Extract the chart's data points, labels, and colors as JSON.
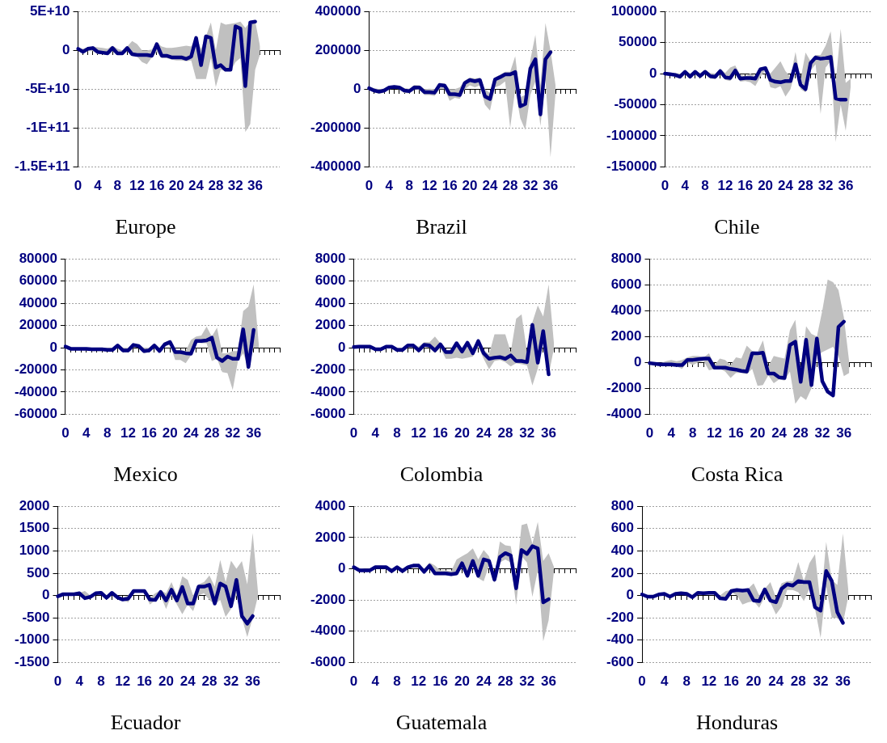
{
  "chart_data": [
    {
      "type": "line",
      "title": "Europe",
      "categories": [
        "0",
        null,
        null,
        null,
        "4",
        null,
        null,
        null,
        "8",
        null,
        null,
        null,
        "12",
        null,
        null,
        null,
        "16",
        null,
        null,
        null,
        "20",
        null,
        null,
        null,
        "24",
        null,
        null,
        null,
        "28",
        null,
        null,
        null,
        "32",
        null,
        null,
        null,
        "36",
        null,
        null,
        null,
        null,
        null
      ],
      "ylim": [
        -150000000000.0,
        50000000000.0
      ],
      "yticks": [
        {
          "value": -150000000000.0,
          "label": "-1.5E+11"
        },
        {
          "value": -100000000000.0,
          "label": "-1E+11"
        },
        {
          "value": -50000000000.0,
          "label": "-5E+10"
        },
        0,
        {
          "value": 50000000000.0,
          "label": "5E+10"
        }
      ],
      "grid": "y",
      "legend": false,
      "series": [
        {
          "color": "#000080",
          "values": [
            2000000000.0,
            -2000000000.0,
            2000000000.0,
            3000000000.0,
            -2000000000.0,
            -3000000000.0,
            -4000000000.0,
            3000000000.0,
            -4000000000.0,
            -4000000000.0,
            3000000000.0,
            -5000000000.0,
            -6000000000.0,
            -6000000000.0,
            -6000000000.0,
            -7000000000.0,
            8000000000.0,
            -7000000000.0,
            -7000000000.0,
            -9000000000.0,
            -9000000000.0,
            -9000000000.0,
            -11000000000.0,
            -8000000000.0,
            16000000000.0,
            -19000000000.0,
            18000000000.0,
            16000000000.0,
            -22000000000.0,
            -19000000000.0,
            -25000000000.0,
            -25000000000.0,
            31000000000.0,
            28000000000.0,
            -46000000000.0,
            36000000000.0,
            37000000000.0,
            null,
            null,
            null,
            null,
            null
          ],
          "lower": [
            -1000000000.0,
            -4000000000.0,
            -1000000000.0,
            -1000000000.0,
            -5000000000.0,
            -5000000000.0,
            -6000000000.0,
            -1000000000.0,
            -6000000000.0,
            -6000000000.0,
            -1000000000.0,
            -7000000000.0,
            -8000000000.0,
            -15000000000.0,
            -18000000000.0,
            -9000000000.0,
            -2000000000.0,
            -10000000000.0,
            -10000000000.0,
            -12000000000.0,
            -13000000000.0,
            -13000000000.0,
            -14000000000.0,
            -13000000000.0,
            -37000000000.0,
            -37000000000.0,
            -37000000000.0,
            -10000000000.0,
            -47000000000.0,
            -25000000000.0,
            -27000000000.0,
            -27000000000.0,
            -15000000000.0,
            -10000000000.0,
            -105000000000.0,
            -95000000000.0,
            -25000000000.0,
            -5000000000.0,
            null,
            null,
            null,
            null
          ],
          "upper": [
            3000000000.0,
            2000000000.0,
            4000000000.0,
            5000000000.0,
            4000000000.0,
            3000000000.0,
            2000000000.0,
            6000000000.0,
            2000000000.0,
            0,
            5000000000.0,
            12000000000.0,
            8000000000.0,
            0,
            0,
            1000000000.0,
            10000000000.0,
            5000000000.0,
            3000000000.0,
            3000000000.0,
            4000000000.0,
            5000000000.0,
            6000000000.0,
            5000000000.0,
            18000000000.0,
            2000000000.0,
            18000000000.0,
            36000000000.0,
            0,
            36000000000.0,
            33000000000.0,
            34000000000.0,
            35000000000.0,
            37000000000.0,
            29000000000.0,
            37000000000.0,
            38000000000.0,
            5000000000.0,
            null,
            null,
            null,
            null
          ]
        }
      ]
    },
    {
      "type": "line",
      "title": "Brazil",
      "categories": [
        "0",
        null,
        null,
        null,
        "4",
        null,
        null,
        null,
        "8",
        null,
        null,
        null,
        "12",
        null,
        null,
        null,
        "16",
        null,
        null,
        null,
        "20",
        null,
        null,
        null,
        "24",
        null,
        null,
        null,
        "28",
        null,
        null,
        null,
        "32",
        null,
        null,
        null,
        "36",
        null,
        null,
        null,
        null,
        null
      ],
      "ylim": [
        -400000,
        400000
      ],
      "yticks": [
        -400000,
        -200000,
        0,
        200000,
        400000
      ],
      "grid": "y",
      "legend": false,
      "series": [
        {
          "color": "#000080",
          "values": [
            5000,
            -7000,
            -13000,
            -7000,
            9000,
            12000,
            9000,
            -7000,
            -10000,
            9000,
            9000,
            -15000,
            -15000,
            -18000,
            22000,
            18000,
            -26000,
            -26000,
            -30000,
            32000,
            47000,
            41000,
            47000,
            -37000,
            -51000,
            50000,
            62000,
            76000,
            76000,
            88000,
            -88000,
            -76000,
            106000,
            154000,
            -130000,
            154000,
            190000,
            null,
            null,
            null,
            null,
            null
          ],
          "lower": [
            -5000,
            -15000,
            -25000,
            -18000,
            0,
            2000,
            0,
            -20000,
            -22000,
            0,
            -5000,
            -30000,
            -30000,
            -35000,
            0,
            0,
            -60000,
            -45000,
            -50000,
            0,
            20000,
            10000,
            20000,
            -80000,
            -110000,
            10000,
            20000,
            40000,
            -200000,
            0,
            -150000,
            -210000,
            -30000,
            40000,
            -190000,
            50000,
            -350000,
            -20000,
            null,
            null,
            null,
            null
          ],
          "upper": [
            12000,
            5000,
            0,
            3000,
            15000,
            20000,
            18000,
            5000,
            2000,
            22000,
            20000,
            0,
            2000,
            0,
            30000,
            30000,
            0,
            0,
            10000,
            45000,
            60000,
            55000,
            60000,
            0,
            -20000,
            60000,
            75000,
            90000,
            90000,
            170000,
            -40000,
            -30000,
            150000,
            280000,
            20000,
            340000,
            200000,
            20000,
            null,
            null,
            null,
            null
          ]
        }
      ]
    },
    {
      "type": "line",
      "title": "Chile",
      "categories": [
        "0",
        null,
        null,
        null,
        "4",
        null,
        null,
        null,
        "8",
        null,
        null,
        null,
        "12",
        null,
        null,
        null,
        "16",
        null,
        null,
        null,
        "20",
        null,
        null,
        null,
        "24",
        null,
        null,
        null,
        "28",
        null,
        null,
        null,
        "32",
        null,
        null,
        null,
        "36",
        null,
        null,
        null,
        null,
        null
      ],
      "ylim": [
        -150000,
        100000
      ],
      "yticks": [
        -150000,
        -100000,
        -50000,
        0,
        50000,
        100000
      ],
      "grid": "y",
      "legend": false,
      "series": [
        {
          "color": "#000080",
          "values": [
            0,
            -1000,
            -2000,
            -5000,
            3000,
            -5000,
            3000,
            -4000,
            3000,
            -4000,
            -5000,
            4000,
            -6000,
            -7000,
            5000,
            -8000,
            -7000,
            -7000,
            -8000,
            7000,
            9000,
            -10000,
            -13000,
            -14000,
            -12000,
            -12000,
            15000,
            -18000,
            -25000,
            17000,
            26000,
            24000,
            25000,
            27000,
            -40000,
            -42000,
            -42000,
            null,
            null,
            null,
            null,
            null
          ],
          "lower": [
            -2000,
            -3000,
            -5000,
            -8000,
            0,
            -8000,
            0,
            -7000,
            0,
            -8000,
            -9000,
            0,
            -10000,
            -12000,
            0,
            -13000,
            -12000,
            -14000,
            -20000,
            -5000,
            5000,
            -22000,
            -24000,
            -20000,
            -37000,
            -25000,
            5000,
            -25000,
            -30000,
            5000,
            15000,
            -65000,
            10000,
            20000,
            -110000,
            -50000,
            -92000,
            -20000,
            null,
            null,
            null,
            null
          ],
          "upper": [
            2000,
            1000,
            1000,
            0,
            5000,
            0,
            5000,
            1000,
            6000,
            1000,
            0,
            8000,
            1000,
            10000,
            13000,
            -2000,
            -4000,
            0,
            -4000,
            8000,
            11000,
            0,
            10000,
            20000,
            4000,
            -5000,
            35000,
            -10000,
            34000,
            20000,
            30000,
            30000,
            45000,
            68000,
            -15000,
            72000,
            -15000,
            -8000,
            null,
            null,
            null,
            null
          ]
        }
      ]
    },
    {
      "type": "line",
      "title": "Mexico",
      "categories": [
        "0",
        null,
        null,
        null,
        "4",
        null,
        null,
        null,
        "8",
        null,
        null,
        null,
        "12",
        null,
        null,
        null,
        "16",
        null,
        null,
        null,
        "20",
        null,
        null,
        null,
        "24",
        null,
        null,
        null,
        "28",
        null,
        null,
        null,
        "32",
        null,
        null,
        null,
        "36",
        null,
        null,
        null,
        null,
        null
      ],
      "ylim": [
        -60000,
        80000
      ],
      "yticks": [
        -60000,
        -40000,
        -20000,
        0,
        20000,
        40000,
        60000,
        80000
      ],
      "grid": "y",
      "legend": false,
      "series": [
        {
          "color": "#000080",
          "values": [
            1000,
            -1000,
            -1000,
            -1000,
            -1000,
            -1500,
            -1500,
            -1500,
            -2000,
            -2000,
            2000,
            -2500,
            -2500,
            2500,
            1500,
            -3000,
            -2500,
            2000,
            -3000,
            3000,
            5000,
            -4000,
            -4000,
            -5000,
            -5500,
            6000,
            6000,
            6500,
            9000,
            -9000,
            -12000,
            -8000,
            -10000,
            -10000,
            16500,
            -17500,
            16000,
            null,
            null,
            null,
            null,
            null
          ],
          "lower": [
            0,
            -2000,
            -2000,
            -2000,
            -2500,
            -3000,
            -3000,
            -3000,
            -3000,
            -3000,
            0,
            -4000,
            -4000,
            0,
            0,
            -5000,
            -4000,
            0,
            -4000,
            1000,
            3000,
            -11000,
            -11000,
            -14000,
            -7000,
            5000,
            4000,
            4000,
            -12000,
            -10000,
            -22000,
            -23000,
            -38000,
            -12000,
            -5000,
            -18000,
            0,
            0,
            null,
            null,
            null,
            null
          ],
          "upper": [
            2000,
            0,
            0,
            0,
            0,
            0,
            0,
            0,
            0,
            0,
            3000,
            0,
            0,
            3000,
            3000,
            0,
            0,
            4000,
            0,
            5000,
            7000,
            -2000,
            -2000,
            -3000,
            7000,
            10000,
            11000,
            19000,
            10000,
            18000,
            -5000,
            -5000,
            -3000,
            -3000,
            33000,
            37000,
            57000,
            2000,
            null,
            null,
            null,
            null
          ]
        }
      ]
    },
    {
      "type": "line",
      "title": "Colombia",
      "categories": [
        "0",
        null,
        null,
        null,
        "4",
        null,
        null,
        null,
        "8",
        null,
        null,
        null,
        "12",
        null,
        null,
        null,
        "16",
        null,
        null,
        null,
        "20",
        null,
        null,
        null,
        "24",
        null,
        null,
        null,
        "28",
        null,
        null,
        null,
        "32",
        null,
        null,
        null,
        "36",
        null,
        null,
        null,
        null,
        null
      ],
      "ylim": [
        -6000,
        8000
      ],
      "yticks": [
        -6000,
        -4000,
        -2000,
        0,
        2000,
        4000,
        6000,
        8000
      ],
      "grid": "y",
      "legend": false,
      "series": [
        {
          "color": "#000080",
          "values": [
            50,
            100,
            100,
            100,
            -150,
            -150,
            100,
            100,
            -200,
            -200,
            200,
            200,
            -250,
            250,
            200,
            -250,
            300,
            -400,
            -400,
            400,
            -350,
            450,
            -500,
            600,
            -500,
            -1000,
            -900,
            -850,
            -1000,
            -700,
            -1200,
            -1200,
            -1300,
            2050,
            -1350,
            1500,
            -2400,
            null,
            null,
            null,
            null,
            null
          ],
          "lower": [
            -50,
            0,
            0,
            0,
            -300,
            -350,
            -50,
            0,
            -400,
            -400,
            50,
            50,
            -500,
            100,
            0,
            -500,
            0,
            -1000,
            -1000,
            -900,
            -1000,
            -900,
            -800,
            100,
            -1000,
            -1950,
            -1200,
            -1100,
            -1300,
            -1700,
            -1400,
            -1500,
            -1600,
            -3400,
            -1900,
            500,
            -2500,
            0,
            null,
            null,
            null,
            null
          ],
          "upper": [
            150,
            200,
            200,
            200,
            0,
            0,
            200,
            200,
            0,
            0,
            350,
            350,
            100,
            500,
            500,
            1000,
            400,
            -200,
            -200,
            500,
            0,
            600,
            0,
            800,
            -200,
            -600,
            1200,
            1200,
            1200,
            -400,
            2600,
            3000,
            -400,
            2300,
            3800,
            2800,
            5700,
            300,
            null,
            null,
            null,
            null
          ]
        }
      ]
    },
    {
      "type": "line",
      "title": "Costa Rica",
      "categories": [
        "0",
        null,
        null,
        null,
        "4",
        null,
        null,
        null,
        "8",
        null,
        null,
        null,
        "12",
        null,
        null,
        null,
        "16",
        null,
        null,
        null,
        "20",
        null,
        null,
        null,
        "24",
        null,
        null,
        null,
        "28",
        null,
        null,
        null,
        "32",
        null,
        null,
        null,
        "36",
        null,
        null,
        null,
        null,
        null
      ],
      "ylim": [
        -4000,
        8000
      ],
      "yticks": [
        -4000,
        -2000,
        0,
        2000,
        4000,
        6000,
        8000
      ],
      "grid": "y",
      "legend": false,
      "series": [
        {
          "color": "#000080",
          "values": [
            -50,
            -100,
            -150,
            -150,
            -150,
            -200,
            -200,
            200,
            200,
            250,
            300,
            300,
            -400,
            -400,
            -400,
            -500,
            -550,
            -650,
            -700,
            700,
            700,
            750,
            -850,
            -850,
            -1150,
            -1200,
            1350,
            1600,
            -1500,
            1750,
            -1750,
            1850,
            -1450,
            -2250,
            -2550,
            2750,
            3150,
            null,
            null,
            null,
            null,
            null
          ],
          "lower": [
            -100,
            -150,
            -250,
            -300,
            -300,
            -300,
            -500,
            0,
            -200,
            0,
            100,
            -600,
            -500,
            -500,
            -700,
            -1200,
            -800,
            -800,
            -900,
            -500,
            -1800,
            -1750,
            -1000,
            -1600,
            -1300,
            -1400,
            -700,
            -3200,
            -2600,
            -2900,
            -2000,
            500,
            800,
            1000,
            1200,
            500,
            -1050,
            -800,
            null,
            null,
            null,
            null
          ],
          "upper": [
            0,
            0,
            -50,
            100,
            200,
            100,
            200,
            400,
            500,
            500,
            400,
            700,
            -200,
            300,
            200,
            -200,
            400,
            300,
            1300,
            900,
            800,
            1700,
            -300,
            500,
            400,
            300,
            2500,
            3300,
            -500,
            2800,
            2200,
            2000,
            4000,
            6400,
            6200,
            5600,
            3500,
            0,
            null,
            null,
            null,
            null
          ]
        }
      ]
    },
    {
      "type": "line",
      "title": "Ecuador",
      "categories": [
        "0",
        null,
        null,
        null,
        "4",
        null,
        null,
        null,
        "8",
        null,
        null,
        null,
        "12",
        null,
        null,
        null,
        "16",
        null,
        null,
        null,
        "20",
        null,
        null,
        null,
        "24",
        null,
        null,
        null,
        "28",
        null,
        null,
        null,
        "32",
        null,
        null,
        null,
        "36",
        null,
        null,
        null,
        null,
        null
      ],
      "ylim": [
        -1500,
        2000
      ],
      "yticks": [
        -1500,
        -1000,
        -500,
        0,
        500,
        1000,
        1500,
        2000
      ],
      "grid": "y",
      "legend": false,
      "series": [
        {
          "color": "#000080",
          "values": [
            -20,
            30,
            30,
            30,
            50,
            -60,
            -30,
            50,
            60,
            -50,
            60,
            -40,
            -90,
            -70,
            100,
            100,
            100,
            -90,
            -100,
            80,
            -110,
            130,
            -110,
            190,
            -180,
            -180,
            200,
            200,
            240,
            -180,
            270,
            200,
            -240,
            350,
            -460,
            -630,
            -460,
            null,
            null,
            null,
            null,
            null
          ],
          "lower": [
            -40,
            0,
            0,
            0,
            20,
            -80,
            -60,
            20,
            30,
            -80,
            20,
            -70,
            -100,
            -150,
            60,
            60,
            60,
            -200,
            -110,
            0,
            -300,
            0,
            -200,
            -420,
            -200,
            -350,
            0,
            50,
            -100,
            -200,
            -100,
            -480,
            -300,
            0,
            -500,
            -930,
            -500,
            0,
            null,
            null,
            null,
            null
          ],
          "upper": [
            0,
            50,
            50,
            50,
            60,
            100,
            0,
            60,
            80,
            0,
            80,
            0,
            -50,
            0,
            120,
            110,
            120,
            -50,
            50,
            120,
            50,
            300,
            0,
            430,
            350,
            0,
            250,
            300,
            450,
            200,
            800,
            300,
            780,
            600,
            770,
            250,
            1400,
            50,
            null,
            null,
            null,
            null
          ]
        }
      ]
    },
    {
      "type": "line",
      "title": "Guatemala",
      "categories": [
        "0",
        null,
        null,
        null,
        "4",
        null,
        null,
        null,
        "8",
        null,
        null,
        null,
        "12",
        null,
        null,
        null,
        "16",
        null,
        null,
        null,
        "20",
        null,
        null,
        null,
        "24",
        null,
        null,
        null,
        "28",
        null,
        null,
        null,
        "32",
        null,
        null,
        null,
        "36",
        null,
        null,
        null,
        null,
        null
      ],
      "ylim": [
        -6000,
        4000
      ],
      "yticks": [
        -6000,
        -4000,
        -2000,
        0,
        2000,
        4000
      ],
      "grid": "y",
      "legend": false,
      "series": [
        {
          "color": "#000080",
          "values": [
            100,
            -100,
            -100,
            -100,
            100,
            100,
            100,
            -150,
            100,
            -150,
            100,
            200,
            200,
            -200,
            200,
            -300,
            -300,
            -300,
            -350,
            -300,
            350,
            -450,
            500,
            -450,
            600,
            500,
            -700,
            750,
            1000,
            850,
            -1250,
            1200,
            950,
            1450,
            1300,
            -2150,
            -1950,
            null,
            null,
            null,
            null,
            null
          ],
          "lower": [
            50,
            -150,
            -200,
            -200,
            50,
            50,
            0,
            -250,
            50,
            -250,
            50,
            100,
            100,
            -300,
            100,
            -400,
            -400,
            -400,
            -450,
            -400,
            150,
            -600,
            200,
            -600,
            -800,
            200,
            -900,
            400,
            600,
            400,
            -2300,
            800,
            400,
            -1800,
            -100,
            -4650,
            -3300,
            -100,
            null,
            null,
            null,
            null
          ],
          "upper": [
            200,
            50,
            0,
            0,
            200,
            200,
            150,
            0,
            200,
            0,
            200,
            250,
            300,
            0,
            400,
            200,
            -100,
            -100,
            -150,
            600,
            800,
            1000,
            1300,
            600,
            1200,
            800,
            -400,
            1750,
            1500,
            1450,
            -500,
            2800,
            2900,
            1600,
            3000,
            500,
            1000,
            100,
            null,
            null,
            null,
            null
          ]
        }
      ]
    },
    {
      "type": "line",
      "title": "Honduras",
      "categories": [
        "0",
        null,
        null,
        null,
        "4",
        null,
        null,
        null,
        "8",
        null,
        null,
        null,
        "12",
        null,
        null,
        null,
        "16",
        null,
        null,
        null,
        "20",
        null,
        null,
        null,
        "24",
        null,
        null,
        null,
        "28",
        null,
        null,
        null,
        "32",
        null,
        null,
        null,
        "36",
        null,
        null,
        null,
        null,
        null
      ],
      "ylim": [
        -600,
        800
      ],
      "yticks": [
        -600,
        -400,
        -200,
        0,
        200,
        400,
        600,
        800
      ],
      "grid": "y",
      "legend": false,
      "series": [
        {
          "color": "#000080",
          "values": [
            10,
            -10,
            -10,
            10,
            15,
            -10,
            15,
            20,
            15,
            -15,
            25,
            20,
            25,
            25,
            -25,
            -30,
            40,
            50,
            45,
            50,
            -45,
            -50,
            55,
            -45,
            -60,
            60,
            100,
            90,
            130,
            120,
            120,
            -105,
            -135,
            220,
            130,
            -150,
            -245,
            null,
            null,
            null,
            null,
            null
          ],
          "lower": [
            5,
            -15,
            -20,
            0,
            5,
            -20,
            5,
            10,
            5,
            -25,
            15,
            10,
            15,
            15,
            -40,
            -40,
            30,
            0,
            -80,
            -60,
            -50,
            -110,
            -10,
            -60,
            -170,
            -100,
            50,
            50,
            30,
            -50,
            60,
            -120,
            -380,
            80,
            -200,
            -200,
            -250,
            0,
            null,
            null,
            null,
            null
          ],
          "upper": [
            20,
            0,
            0,
            15,
            25,
            0,
            25,
            30,
            25,
            0,
            30,
            30,
            30,
            30,
            0,
            40,
            50,
            55,
            50,
            60,
            110,
            0,
            60,
            120,
            -20,
            110,
            130,
            130,
            300,
            130,
            290,
            370,
            -80,
            480,
            140,
            95,
            555,
            30,
            null,
            null,
            null,
            null
          ]
        }
      ]
    }
  ]
}
